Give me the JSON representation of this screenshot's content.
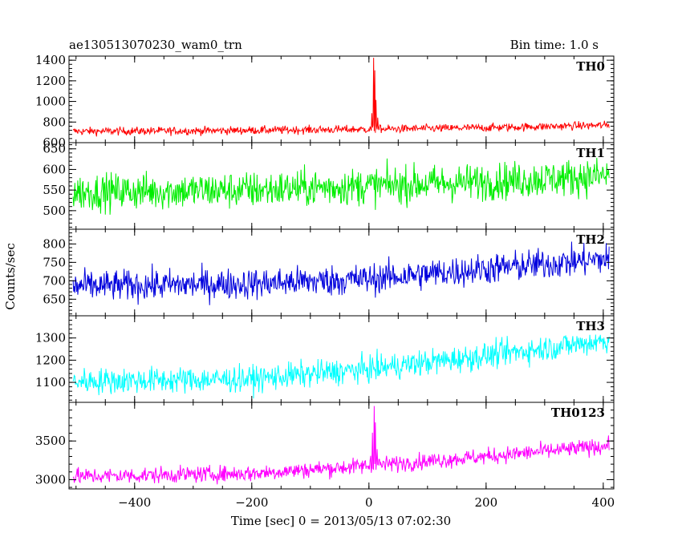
{
  "header": {
    "title": "ae130513070230_wam0_trn",
    "bin_time": "Bin time: 1.0 s"
  },
  "chart_data": {
    "type": "line",
    "xlabel": "Time [sec] 0 = 2013/05/13 07:02:30",
    "ylabel": "Counts/sec",
    "xlim": [
      -512,
      418
    ],
    "x_ticks": [
      -400,
      -200,
      0,
      200,
      400
    ],
    "x_range_data": [
      -505,
      410
    ],
    "panels": [
      {
        "name": "TH0",
        "color": "#ff0000",
        "ylim": [
          600,
          1440
        ],
        "y_ticks": [
          600,
          800,
          1000,
          1200,
          1400
        ],
        "baseline": [
          [
            -505,
            710
          ],
          [
            -300,
            715
          ],
          [
            0,
            730
          ],
          [
            200,
            745
          ],
          [
            410,
            770
          ]
        ],
        "noise": 28,
        "spikes": [
          [
            2,
            760
          ],
          [
            5,
            880
          ],
          [
            8,
            1430
          ],
          [
            10,
            1300
          ],
          [
            12,
            1020
          ],
          [
            15,
            830
          ],
          [
            20,
            760
          ]
        ]
      },
      {
        "name": "TH1",
        "color": "#00ee00",
        "ylim": [
          455,
          665
        ],
        "y_ticks": [
          500,
          550,
          600,
          650
        ],
        "baseline": [
          [
            -505,
            545
          ],
          [
            -200,
            550
          ],
          [
            0,
            560
          ],
          [
            200,
            570
          ],
          [
            410,
            585
          ]
        ],
        "noise": 32,
        "spikes": []
      },
      {
        "name": "TH2",
        "color": "#0000dd",
        "ylim": [
          605,
          840
        ],
        "y_ticks": [
          650,
          700,
          750,
          800
        ],
        "baseline": [
          [
            -505,
            685
          ],
          [
            -200,
            692
          ],
          [
            0,
            705
          ],
          [
            200,
            732
          ],
          [
            410,
            760
          ]
        ],
        "noise": 30,
        "spikes": []
      },
      {
        "name": "TH3",
        "color": "#00ffff",
        "ylim": [
          1010,
          1400
        ],
        "y_ticks": [
          1100,
          1200,
          1300
        ],
        "baseline": [
          [
            -505,
            1105
          ],
          [
            -200,
            1115
          ],
          [
            0,
            1160
          ],
          [
            200,
            1220
          ],
          [
            410,
            1290
          ]
        ],
        "noise": 42,
        "spikes": []
      },
      {
        "name": "TH0123",
        "color": "#ff00ff",
        "ylim": [
          2880,
          4000
        ],
        "y_ticks": [
          3000,
          3500
        ],
        "baseline": [
          [
            -505,
            3040
          ],
          [
            -200,
            3080
          ],
          [
            0,
            3180
          ],
          [
            200,
            3300
          ],
          [
            410,
            3440
          ]
        ],
        "noise": 75,
        "spikes": [
          [
            3,
            3300
          ],
          [
            6,
            3600
          ],
          [
            9,
            3960
          ],
          [
            11,
            3750
          ],
          [
            14,
            3400
          ],
          [
            18,
            3250
          ]
        ]
      }
    ]
  }
}
